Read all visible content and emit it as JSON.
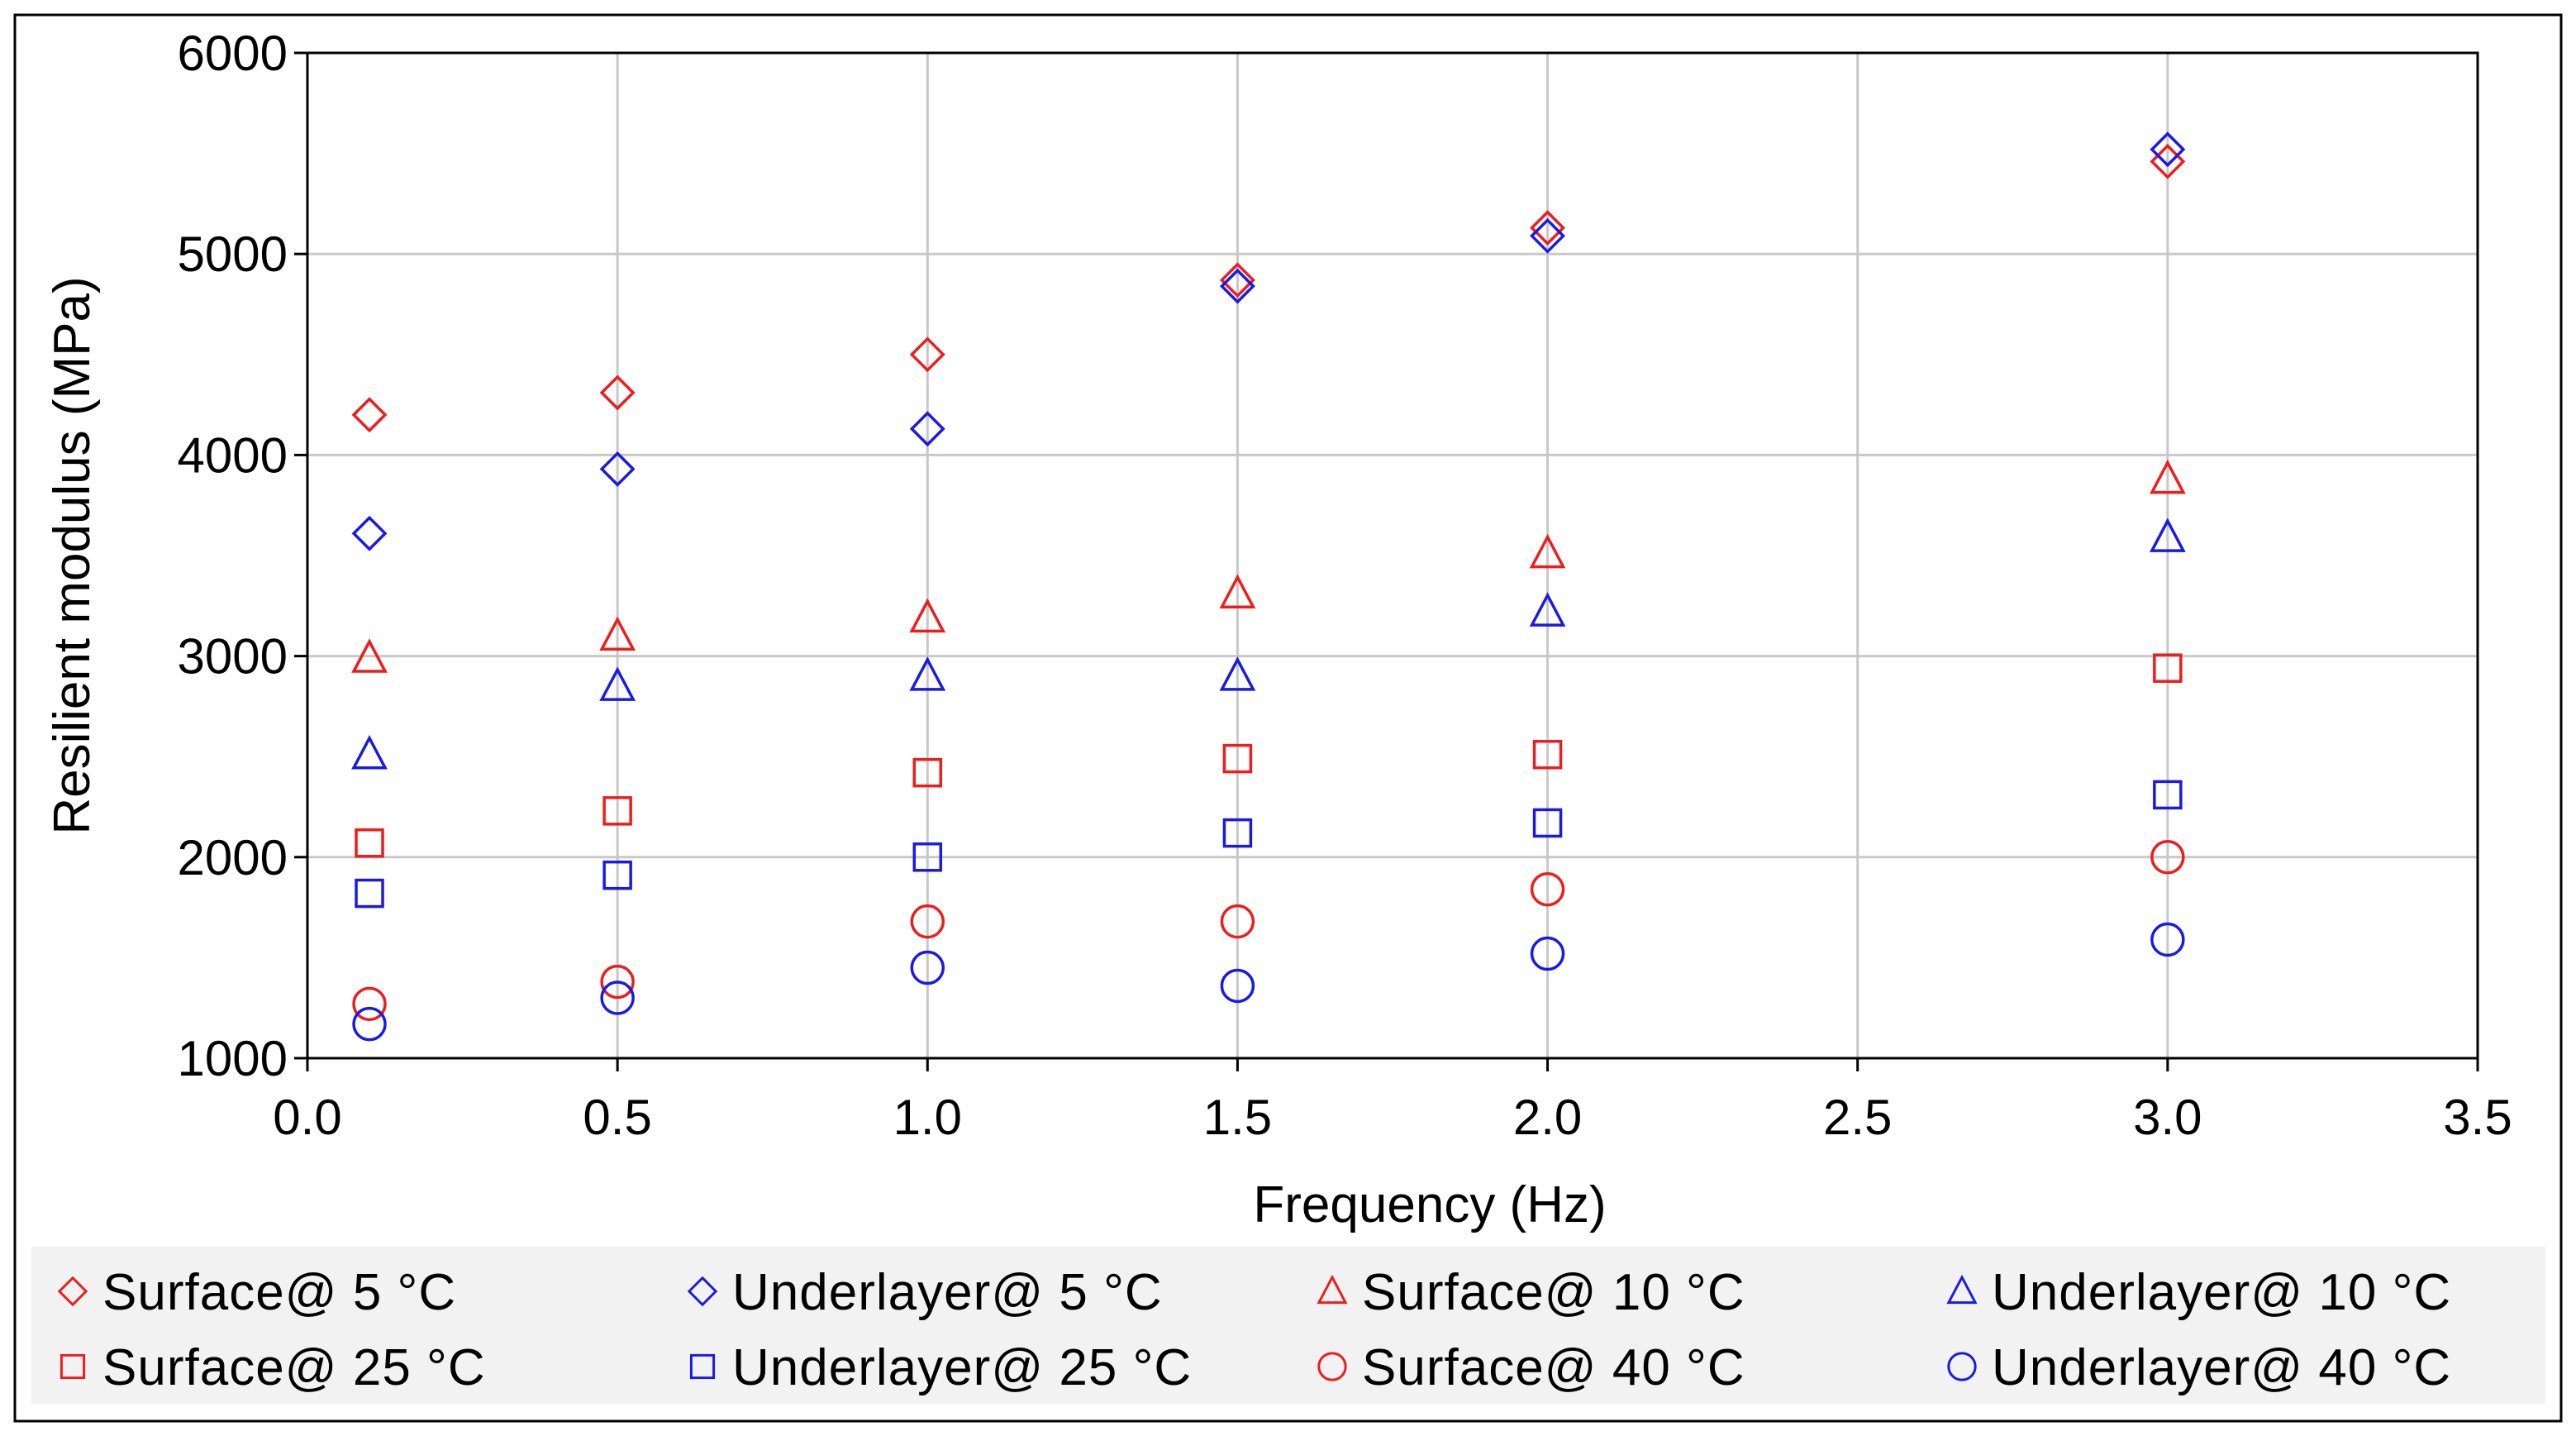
{
  "chart_data": {
    "type": "scatter",
    "title": "",
    "xlabel": "Frequency  (Hz)",
    "ylabel": "Resilient modulus  (MPa)",
    "xlim": [
      0,
      3.5
    ],
    "ylim": [
      1000,
      6000
    ],
    "xticks": [
      0,
      0.5,
      1.0,
      1.5,
      2.0,
      2.5,
      3.0,
      3.5
    ],
    "xtick_labels": [
      "0.0",
      "0.5",
      "1.0",
      "1.5",
      "2.0",
      "2.5",
      "3.0",
      "3.5"
    ],
    "yticks": [
      1000,
      2000,
      3000,
      4000,
      5000,
      6000
    ],
    "ytick_labels": [
      "1000",
      "2000",
      "3000",
      "4000",
      "5000",
      "6000"
    ],
    "grid": true,
    "legend_position": "bottom",
    "series": [
      {
        "name": "Surface@ 5 °C",
        "marker": "diamond",
        "color": "#ee1c1c",
        "x": [
          0.1,
          0.5,
          1.0,
          1.5,
          2.0,
          3.0
        ],
        "y": [
          4200,
          4310,
          4500,
          4870,
          5130,
          5460
        ]
      },
      {
        "name": "Underlayer@ 5 °C",
        "marker": "diamond",
        "color": "#1a1ae6",
        "x": [
          0.1,
          0.5,
          1.0,
          1.5,
          2.0,
          3.0
        ],
        "y": [
          3610,
          3930,
          4130,
          4840,
          5090,
          5520
        ]
      },
      {
        "name": "Surface@ 10 °C",
        "marker": "triangle",
        "color": "#ee1c1c",
        "x": [
          0.1,
          0.5,
          1.0,
          1.5,
          2.0,
          3.0
        ],
        "y": [
          2990,
          3100,
          3190,
          3310,
          3510,
          3880
        ]
      },
      {
        "name": "Underlayer@ 10 °C",
        "marker": "triangle",
        "color": "#1a1ae6",
        "x": [
          0.1,
          0.5,
          1.0,
          1.5,
          2.0,
          3.0
        ],
        "y": [
          2510,
          2850,
          2900,
          2900,
          3220,
          3590
        ]
      },
      {
        "name": "Surface@ 25 °C",
        "marker": "square",
        "color": "#ee1c1c",
        "x": [
          0.1,
          0.5,
          1.0,
          1.5,
          2.0,
          3.0
        ],
        "y": [
          2070,
          2230,
          2420,
          2490,
          2510,
          2940
        ]
      },
      {
        "name": "Underlayer@ 25 °C",
        "marker": "square",
        "color": "#1a1ae6",
        "x": [
          0.1,
          0.5,
          1.0,
          1.5,
          2.0,
          3.0
        ],
        "y": [
          1820,
          1910,
          2000,
          2120,
          2170,
          2310
        ]
      },
      {
        "name": "Surface@ 40 °C",
        "marker": "circle",
        "color": "#ee1c1c",
        "x": [
          0.1,
          0.5,
          1.0,
          1.5,
          2.0,
          3.0
        ],
        "y": [
          1270,
          1380,
          1680,
          1680,
          1840,
          2000
        ]
      },
      {
        "name": "Underlayer@ 40 °C",
        "marker": "circle",
        "color": "#1a1ae6",
        "x": [
          0.1,
          0.5,
          1.0,
          1.5,
          2.0,
          3.0
        ],
        "y": [
          1170,
          1300,
          1450,
          1360,
          1520,
          1590
        ]
      }
    ]
  }
}
